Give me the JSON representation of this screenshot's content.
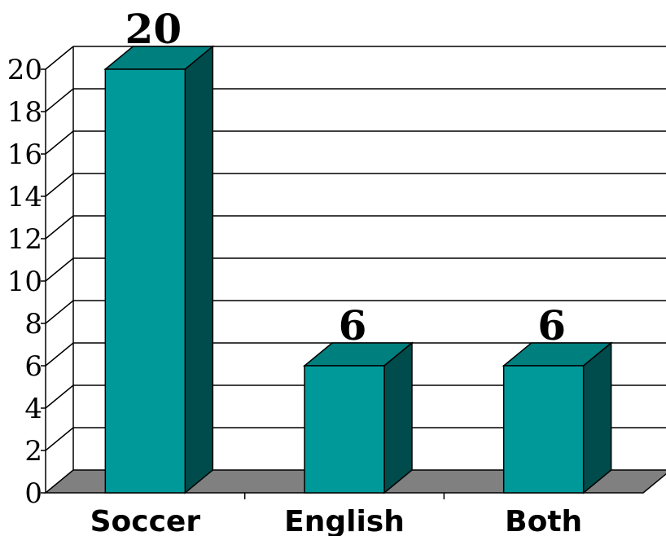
{
  "chart_data": {
    "type": "bar",
    "categories": [
      "Soccer",
      "English",
      "Both"
    ],
    "values": [
      20,
      6,
      6
    ],
    "data_labels": [
      "20",
      "6",
      "6"
    ],
    "y_ticks": [
      "0",
      "2",
      "4",
      "6",
      "8",
      "10",
      "12",
      "14",
      "16",
      "18",
      "20"
    ],
    "ylim": [
      0,
      20
    ],
    "grid": true,
    "style": "3d",
    "colors": {
      "bar_front": "#009999",
      "bar_top": "#007F7F",
      "bar_side": "#004C4C",
      "floor": "#808080",
      "grid": "#000000"
    }
  }
}
